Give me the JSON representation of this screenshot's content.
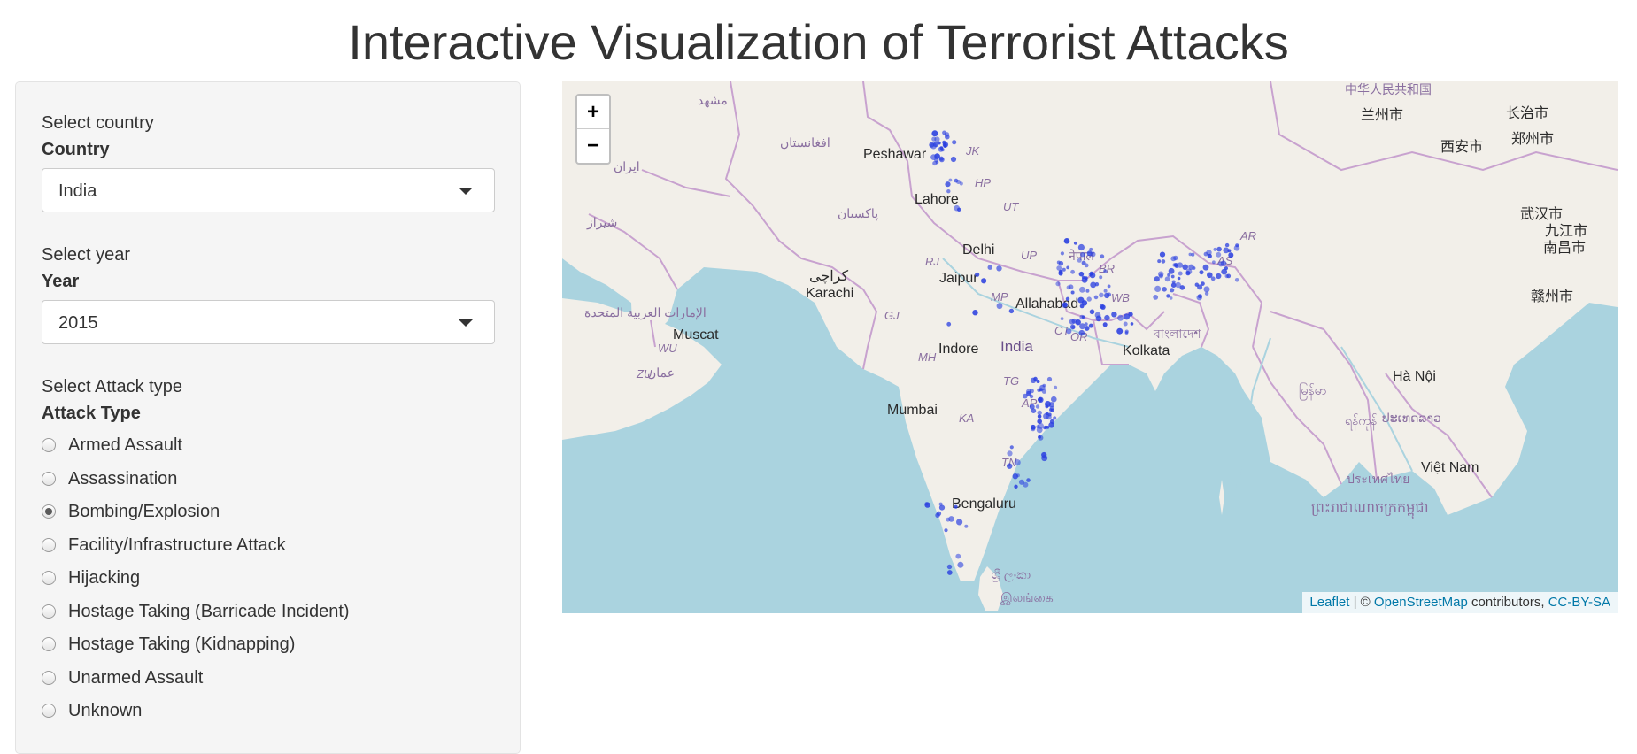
{
  "page": {
    "title": "Interactive Visualization of Terrorist Attacks"
  },
  "country_filter": {
    "caption": "Select country",
    "label": "Country",
    "value": "India"
  },
  "year_filter": {
    "caption": "Select year",
    "label": "Year",
    "value": "2015"
  },
  "attack_filter": {
    "caption": "Select Attack type",
    "label": "Attack Type",
    "selected": "Bombing/Explosion",
    "options": [
      "Armed Assault",
      "Assassination",
      "Bombing/Explosion",
      "Facility/Infrastructure Attack",
      "Hijacking",
      "Hostage Taking (Barricade Incident)",
      "Hostage Taking (Kidnapping)",
      "Unarmed Assault",
      "Unknown"
    ]
  },
  "map": {
    "zoom_in": "+",
    "zoom_out": "−",
    "attribution": {
      "leaflet": "Leaflet",
      "sep": " | © ",
      "osm": "OpenStreetMap",
      "contrib": " contributors, ",
      "license": "CC-BY-SA"
    },
    "colors": {
      "water": "#aad3df",
      "land": "#f2efe9",
      "border": "#c8a2cf",
      "marker": "#2a3fe0"
    },
    "places": {
      "peshawar": "Peshawar",
      "lahore": "Lahore",
      "delhi": "Delhi",
      "jaipur": "Jaipur",
      "allahabad": "Allahabad",
      "karachi": "Karachi",
      "karachi_ur": "کراچی",
      "muscat": "Muscat",
      "indore": "Indore",
      "india": "India",
      "kolkata": "Kolkata",
      "mumbai": "Mumbai",
      "bengaluru": "Bengaluru",
      "ha_noi": "Hà Nội",
      "viet_nam": "Việt Nam",
      "mashhad": "مشهد",
      "afghanistan": "افغانستان",
      "pakistan": "پاکستان",
      "iran": "ایران",
      "shiraz": "شیراز",
      "uae": "الإمارات العربية المتحدة",
      "oman": "عمان",
      "nepal": "नेपाल",
      "bangladesh": "বাংলাদেশ",
      "thailand": "ประเทศไทย",
      "laos": "ປະເທດລາວ",
      "cambodia": "ព្រះរាជាណាចក្រកម្ពុជា",
      "myanmar": "မြန်မာ",
      "srilanka_si": "ශ්‍රී ලංකා",
      "srilanka_ta": "இலங்கை",
      "china": "中华人民共和国",
      "lanzhou": "兰州市",
      "xian": "西安市",
      "changzhi": "长治市",
      "zhengzhou": "郑州市",
      "wuhan": "武汉市",
      "jiujiang": "九江市",
      "nanchang": "南昌市",
      "ganzhou": "赣州市",
      "yangon": "ရန်ကုန်"
    },
    "states": [
      "JK",
      "HP",
      "UT",
      "UP",
      "BR",
      "RJ",
      "MP",
      "GJ",
      "MH",
      "TG",
      "AP",
      "KA",
      "TN",
      "OR",
      "CT",
      "WB",
      "AS",
      "AR",
      "WU",
      "ZU"
    ]
  }
}
